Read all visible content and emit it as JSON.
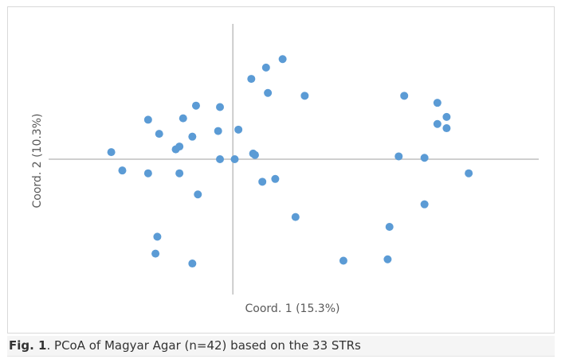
{
  "caption": {
    "label": "Fig. 1",
    "text": ". PCoA of Magyar Agar (n=42) based on the 33 STRs"
  },
  "colors": {
    "point": "#5b9bd5",
    "axis": "#bfbfbf",
    "text": "#595959"
  },
  "chart_data": {
    "type": "scatter",
    "xlabel": "Coord. 1 (15.3%)",
    "ylabel": "Coord. 2 (10.3%)",
    "xlim": [
      -0.5,
      0.83
    ],
    "ylim": [
      -0.48,
      0.48
    ],
    "grid": false,
    "legend": "none",
    "points": [
      {
        "x": -0.33,
        "y": 0.025
      },
      {
        "x": -0.3,
        "y": -0.04
      },
      {
        "x": -0.23,
        "y": -0.05
      },
      {
        "x": -0.23,
        "y": 0.14
      },
      {
        "x": -0.2,
        "y": 0.09
      },
      {
        "x": -0.155,
        "y": 0.035
      },
      {
        "x": -0.145,
        "y": 0.045
      },
      {
        "x": -0.135,
        "y": 0.145
      },
      {
        "x": -0.11,
        "y": 0.08
      },
      {
        "x": -0.1,
        "y": 0.19
      },
      {
        "x": -0.145,
        "y": -0.05
      },
      {
        "x": -0.095,
        "y": -0.125
      },
      {
        "x": -0.205,
        "y": -0.275
      },
      {
        "x": -0.21,
        "y": -0.335
      },
      {
        "x": -0.11,
        "y": -0.37
      },
      {
        "x": -0.035,
        "y": 0.185
      },
      {
        "x": -0.04,
        "y": 0.1
      },
      {
        "x": -0.035,
        "y": 0.0
      },
      {
        "x": 0.005,
        "y": 0.0
      },
      {
        "x": 0.015,
        "y": 0.105
      },
      {
        "x": 0.055,
        "y": 0.02
      },
      {
        "x": 0.06,
        "y": 0.015
      },
      {
        "x": 0.05,
        "y": 0.285
      },
      {
        "x": 0.09,
        "y": 0.325
      },
      {
        "x": 0.135,
        "y": 0.355
      },
      {
        "x": 0.095,
        "y": 0.235
      },
      {
        "x": 0.195,
        "y": 0.225
      },
      {
        "x": 0.08,
        "y": -0.08
      },
      {
        "x": 0.115,
        "y": -0.07
      },
      {
        "x": 0.17,
        "y": -0.205
      },
      {
        "x": 0.3,
        "y": -0.36
      },
      {
        "x": 0.42,
        "y": -0.355
      },
      {
        "x": 0.425,
        "y": -0.24
      },
      {
        "x": 0.45,
        "y": 0.01
      },
      {
        "x": 0.465,
        "y": 0.225
      },
      {
        "x": 0.52,
        "y": 0.005
      },
      {
        "x": 0.52,
        "y": -0.16
      },
      {
        "x": 0.555,
        "y": 0.2
      },
      {
        "x": 0.58,
        "y": 0.15
      },
      {
        "x": 0.555,
        "y": 0.125
      },
      {
        "x": 0.58,
        "y": 0.11
      },
      {
        "x": 0.64,
        "y": -0.05
      }
    ]
  }
}
